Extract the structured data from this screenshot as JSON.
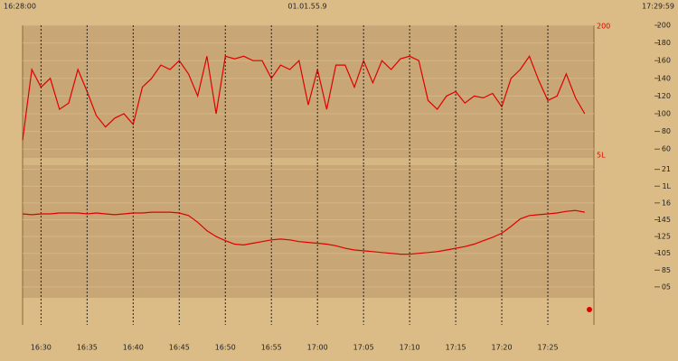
{
  "header": {
    "left": "16:28:00",
    "center": "01.01.55.9",
    "right": "17:29:59"
  },
  "chart_data": [
    {
      "type": "line",
      "color": "#e00000",
      "limit_labels": [
        "200",
        "5L"
      ],
      "xlim": [
        "16:28",
        "17:30"
      ],
      "x": [
        "16:28",
        "16:29",
        "16:30",
        "16:31",
        "16:32",
        "16:33",
        "16:34",
        "16:35",
        "16:36",
        "16:37",
        "16:38",
        "16:39",
        "16:40",
        "16:41",
        "16:42",
        "16:43",
        "16:44",
        "16:45",
        "16:46",
        "16:47",
        "16:48",
        "16:49",
        "16:50",
        "16:51",
        "16:52",
        "16:53",
        "16:54",
        "16:55",
        "16:56",
        "16:57",
        "16:58",
        "16:59",
        "17:00",
        "17:01",
        "17:02",
        "17:03",
        "17:04",
        "17:05",
        "17:06",
        "17:07",
        "17:08",
        "17:09",
        "17:10",
        "17:11",
        "17:12",
        "17:13",
        "17:14",
        "17:15",
        "17:16",
        "17:17",
        "17:18",
        "17:19",
        "17:20",
        "17:21",
        "17:22",
        "17:23",
        "17:24",
        "17:25",
        "17:26",
        "17:27",
        "17:28",
        "17:29"
      ],
      "values": [
        70,
        150,
        130,
        140,
        105,
        112,
        150,
        125,
        98,
        85,
        95,
        100,
        88,
        130,
        140,
        155,
        150,
        160,
        145,
        120,
        165,
        100,
        165,
        162,
        165,
        160,
        160,
        140,
        155,
        150,
        160,
        110,
        150,
        105,
        155,
        155,
        130,
        160,
        135,
        160,
        150,
        162,
        165,
        160,
        115,
        105,
        120,
        125,
        112,
        120,
        118,
        123,
        108,
        140,
        150,
        165,
        138,
        115,
        120,
        145,
        118,
        100
      ],
      "ylim": [
        50,
        200
      ],
      "yticks": [
        60,
        80,
        100,
        120,
        140,
        160,
        180,
        200
      ],
      "grid": true
    },
    {
      "type": "line",
      "color": "#e00000",
      "xlim": [
        "16:28",
        "17:30"
      ],
      "x": [
        "16:28",
        "16:29",
        "16:30",
        "16:31",
        "16:32",
        "16:33",
        "16:34",
        "16:35",
        "16:36",
        "16:37",
        "16:38",
        "16:39",
        "16:40",
        "16:41",
        "16:42",
        "16:43",
        "16:44",
        "16:45",
        "16:46",
        "16:47",
        "16:48",
        "16:49",
        "16:50",
        "16:51",
        "16:52",
        "16:53",
        "16:54",
        "16:55",
        "16:56",
        "16:57",
        "16:58",
        "16:59",
        "17:00",
        "17:01",
        "17:02",
        "17:03",
        "17:04",
        "17:05",
        "17:06",
        "17:07",
        "17:08",
        "17:09",
        "17:10",
        "17:11",
        "17:12",
        "17:13",
        "17:14",
        "17:15",
        "17:16",
        "17:17",
        "17:18",
        "17:19",
        "17:20",
        "17:21",
        "17:22",
        "17:23",
        "17:24",
        "17:25",
        "17:26",
        "17:27",
        "17:28",
        "17:29"
      ],
      "values": [
        152,
        151,
        152,
        152,
        153,
        153,
        153,
        152,
        153,
        152,
        151,
        152,
        153,
        153,
        154,
        154,
        154,
        153,
        150,
        142,
        132,
        125,
        120,
        116,
        115,
        117,
        119,
        121,
        122,
        121,
        119,
        118,
        117,
        116,
        114,
        111,
        109,
        108,
        107,
        106,
        105,
        104,
        104,
        105,
        106,
        107,
        109,
        111,
        113,
        116,
        120,
        124,
        129,
        137,
        146,
        150,
        151,
        152,
        153,
        155,
        156,
        154
      ],
      "ylim": [
        52,
        210
      ],
      "yticks": [
        {
          "value": 65,
          "label": "05"
        },
        85,
        105,
        125,
        145,
        {
          "value": 165,
          "label": "16"
        },
        {
          "value": 185,
          "label": "1L"
        },
        {
          "value": 205,
          "label": "21"
        }
      ],
      "xticks": [
        "16:30",
        "16:35",
        "16:40",
        "16:45",
        "16:50",
        "16:55",
        "17:00",
        "17:05",
        "17:10",
        "17:15",
        "17:20",
        "17:25"
      ],
      "grid": true
    }
  ]
}
